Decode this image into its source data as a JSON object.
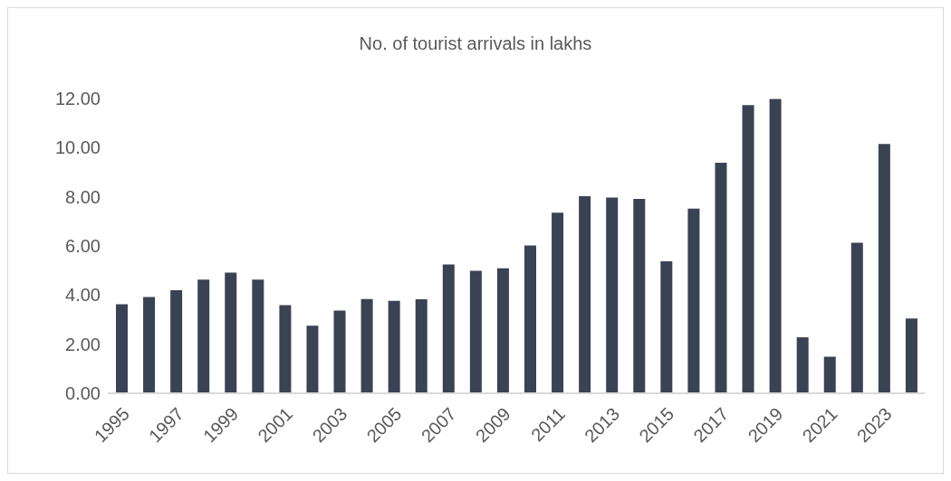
{
  "chart_data": {
    "type": "bar",
    "title": "No. of tourist arrivals in lakhs",
    "categories": [
      "1995",
      null,
      "1997",
      null,
      "1999",
      null,
      "2001",
      null,
      "2003",
      null,
      "2005",
      null,
      "2007",
      null,
      "2009",
      null,
      "2011",
      null,
      "2013",
      null,
      "2015",
      null,
      "2017",
      null,
      "2019",
      null,
      "2021",
      null,
      "2023",
      null
    ],
    "values": [
      3.63,
      3.92,
      4.2,
      4.63,
      4.91,
      4.63,
      3.59,
      2.75,
      3.37,
      3.84,
      3.76,
      3.83,
      5.25,
      4.99,
      5.09,
      6.02,
      7.35,
      8.02,
      7.97,
      7.91,
      5.37,
      7.52,
      9.39,
      11.73,
      11.98,
      2.28,
      1.49,
      6.13,
      10.15,
      3.05
    ],
    "color": "#3a4354",
    "ylim": [
      0,
      12
    ],
    "yticks": [
      {
        "value": 0,
        "label": "0.00"
      },
      {
        "value": 2,
        "label": "2.00"
      },
      {
        "value": 4,
        "label": "4.00"
      },
      {
        "value": 6,
        "label": "6.00"
      },
      {
        "value": 8,
        "label": "8.00"
      },
      {
        "value": 10,
        "label": "10.00"
      },
      {
        "value": 12,
        "label": "12.00"
      }
    ],
    "grid": false,
    "legend": false
  }
}
